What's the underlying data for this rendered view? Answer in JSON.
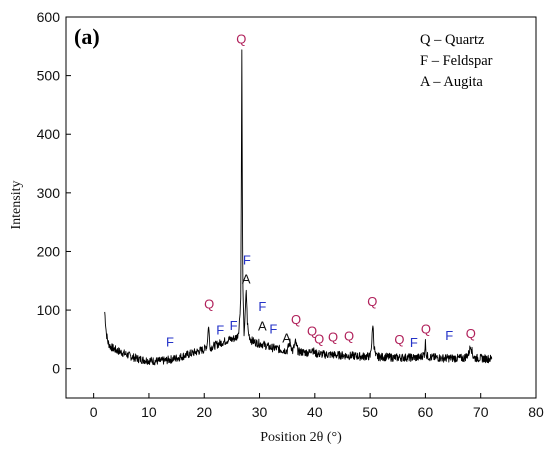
{
  "chart_data": {
    "type": "line",
    "panel_label": "(a)",
    "xlabel": "Position 2θ (°)",
    "ylabel": "Intensity",
    "xlim": [
      -5,
      80
    ],
    "ylim": [
      -50,
      600
    ],
    "xticks": [
      0,
      10,
      20,
      30,
      40,
      50,
      60,
      70,
      80
    ],
    "yticks": [
      0,
      100,
      200,
      300,
      400,
      500,
      600
    ],
    "xtick_labels": [
      "0",
      "10",
      "20",
      "30",
      "40",
      "50",
      "60",
      "70",
      "80"
    ],
    "ytick_labels": [
      "0",
      "100",
      "200",
      "300",
      "400",
      "500",
      "600"
    ],
    "grid": false,
    "legend": {
      "placement": "top-right",
      "entries": [
        "Q – Quartz",
        "F – Feldspar",
        "A – Augita"
      ]
    },
    "colors": {
      "Q": "#b0205a",
      "F": "#2433c8",
      "A": "#111111",
      "trace": "#000000"
    },
    "series": [
      {
        "x": [
          2.0,
          2.3,
          2.6,
          3.0,
          4,
          5,
          6,
          7,
          8,
          9,
          10,
          11,
          12,
          13,
          14,
          15,
          16,
          17,
          18,
          19,
          20,
          20.5,
          20.8,
          21.0,
          21.2,
          21.5,
          22,
          22.5,
          23,
          23.5,
          24,
          24.5,
          25,
          25.5,
          26,
          26.3,
          26.6,
          26.7,
          26.8,
          26.9,
          27.0,
          27.2,
          27.4,
          27.6,
          27.8,
          28.0,
          28.2,
          28.4,
          28.6,
          29,
          29.5,
          30,
          30.5,
          31,
          31.5,
          32,
          33,
          34,
          35,
          35.5,
          36,
          36.5,
          37,
          38,
          39,
          39.5,
          40,
          41,
          42,
          43,
          44,
          45,
          46,
          47,
          48,
          49,
          50,
          50.3,
          50.5,
          50.7,
          51,
          52,
          53,
          54,
          55,
          56,
          57,
          58,
          59,
          59.8,
          60.0,
          60.2,
          61,
          62,
          63,
          64,
          65,
          66,
          67,
          67.8,
          68.2,
          68.6,
          69,
          70,
          71,
          72
        ],
        "y": [
          97,
          60,
          45,
          38,
          32,
          28,
          24,
          20,
          17,
          15,
          14,
          13,
          13,
          14,
          16,
          18,
          21,
          24,
          27,
          30,
          33,
          40,
          75,
          40,
          36,
          38,
          40,
          42,
          44,
          46,
          48,
          50,
          50,
          52,
          55,
          70,
          120,
          300,
          545,
          280,
          130,
          60,
          90,
          135,
          80,
          60,
          55,
          50,
          48,
          46,
          44,
          43,
          42,
          40,
          38,
          36,
          35,
          32,
          31,
          45,
          30,
          45,
          29,
          28,
          27,
          35,
          26,
          25,
          24,
          24,
          23,
          23,
          22,
          22,
          21,
          21,
          21,
          45,
          78,
          40,
          21,
          20,
          20,
          19,
          19,
          19,
          19,
          19,
          19,
          25,
          45,
          22,
          19,
          19,
          18,
          18,
          18,
          18,
          18,
          25,
          40,
          22,
          18,
          18,
          17,
          17
        ]
      }
    ],
    "annotations": [
      {
        "text": "Q",
        "x": 26.7,
        "y": 555,
        "phase": "Q"
      },
      {
        "text": "Q",
        "x": 20.9,
        "y": 103,
        "phase": "Q"
      },
      {
        "text": "F",
        "x": 13.8,
        "y": 38,
        "phase": "F"
      },
      {
        "text": "F",
        "x": 22.9,
        "y": 58,
        "phase": "F"
      },
      {
        "text": "F",
        "x": 25.3,
        "y": 66,
        "phase": "F"
      },
      {
        "text": "F",
        "x": 27.7,
        "y": 178,
        "phase": "F"
      },
      {
        "text": "A",
        "x": 27.6,
        "y": 145,
        "phase": "A"
      },
      {
        "text": "F",
        "x": 30.5,
        "y": 98,
        "phase": "F"
      },
      {
        "text": "A",
        "x": 30.5,
        "y": 65,
        "phase": "A"
      },
      {
        "text": "F",
        "x": 32.5,
        "y": 60,
        "phase": "F"
      },
      {
        "text": "A",
        "x": 34.9,
        "y": 45,
        "phase": "A"
      },
      {
        "text": "Q",
        "x": 36.6,
        "y": 76,
        "phase": "Q"
      },
      {
        "text": "Q",
        "x": 39.5,
        "y": 57,
        "phase": "Q"
      },
      {
        "text": "Q",
        "x": 40.8,
        "y": 43,
        "phase": "Q"
      },
      {
        "text": "Q",
        "x": 43.3,
        "y": 46,
        "phase": "Q"
      },
      {
        "text": "Q",
        "x": 46.2,
        "y": 48,
        "phase": "Q"
      },
      {
        "text": "Q",
        "x": 50.4,
        "y": 107,
        "phase": "Q"
      },
      {
        "text": "Q",
        "x": 55.3,
        "y": 42,
        "phase": "Q"
      },
      {
        "text": "F",
        "x": 57.9,
        "y": 37,
        "phase": "F"
      },
      {
        "text": "Q",
        "x": 60.1,
        "y": 60,
        "phase": "Q"
      },
      {
        "text": "F",
        "x": 64.3,
        "y": 49,
        "phase": "F"
      },
      {
        "text": "Q",
        "x": 68.2,
        "y": 52,
        "phase": "Q"
      }
    ]
  }
}
